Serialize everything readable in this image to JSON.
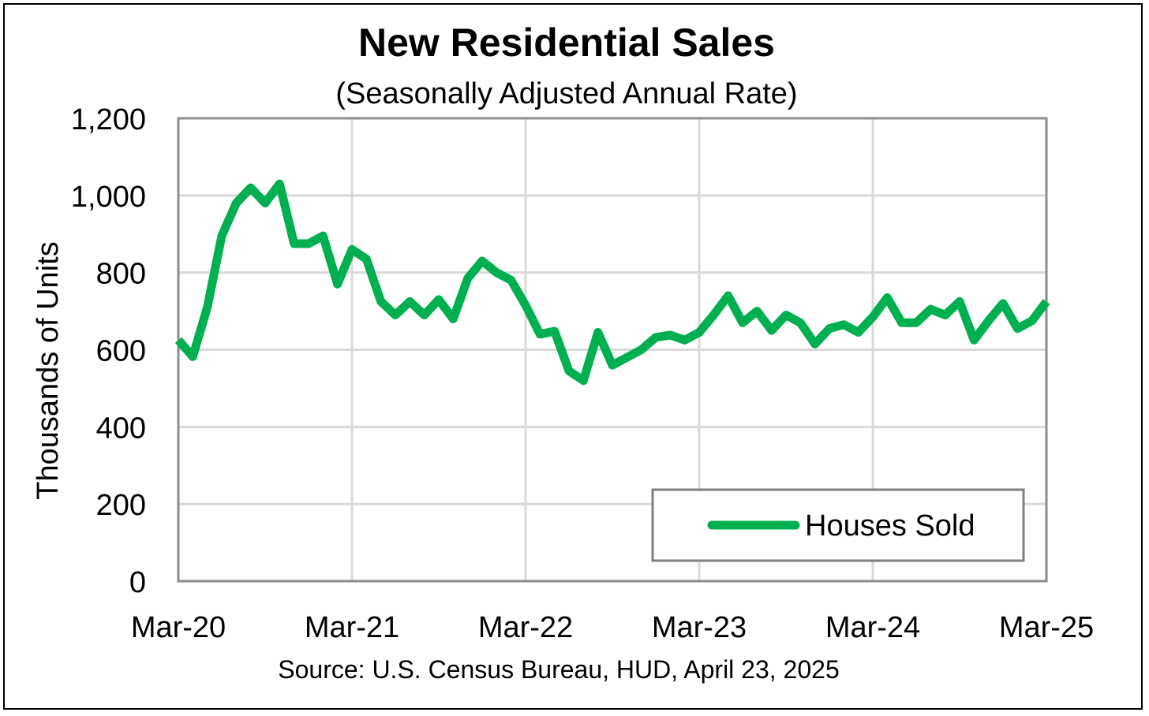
{
  "chart_data": {
    "type": "line",
    "title": "New Residential Sales",
    "subtitle": "(Seasonally Adjusted Annual Rate)",
    "ylabel": "Thousands of Units",
    "xlabel": "",
    "source": "Source:  U.S. Census Bureau, HUD, April 23, 2025",
    "ylim": [
      0,
      1200
    ],
    "yticks": [
      0,
      200,
      400,
      600,
      800,
      1000,
      1200
    ],
    "ytick_labels": [
      "0",
      "200",
      "400",
      "600",
      "800",
      "1,000",
      "1,200"
    ],
    "xtick_labels": [
      "Mar-20",
      "Mar-21",
      "Mar-22",
      "Mar-23",
      "Mar-24",
      "Mar-25"
    ],
    "grid": true,
    "legend_position": "bottom-right",
    "line_color": "#00b050",
    "series": [
      {
        "name": "Houses Sold",
        "values": [
          625,
          582,
          710,
          895,
          980,
          1020,
          980,
          1030,
          875,
          875,
          895,
          770,
          860,
          835,
          725,
          690,
          725,
          690,
          730,
          680,
          785,
          830,
          800,
          780,
          715,
          640,
          648,
          545,
          520,
          645,
          560,
          580,
          600,
          632,
          638,
          625,
          645,
          690,
          740,
          670,
          700,
          650,
          690,
          670,
          615,
          655,
          665,
          645,
          685,
          735,
          670,
          670,
          705,
          690,
          725,
          625,
          675,
          720,
          655,
          675,
          725
        ]
      }
    ]
  }
}
